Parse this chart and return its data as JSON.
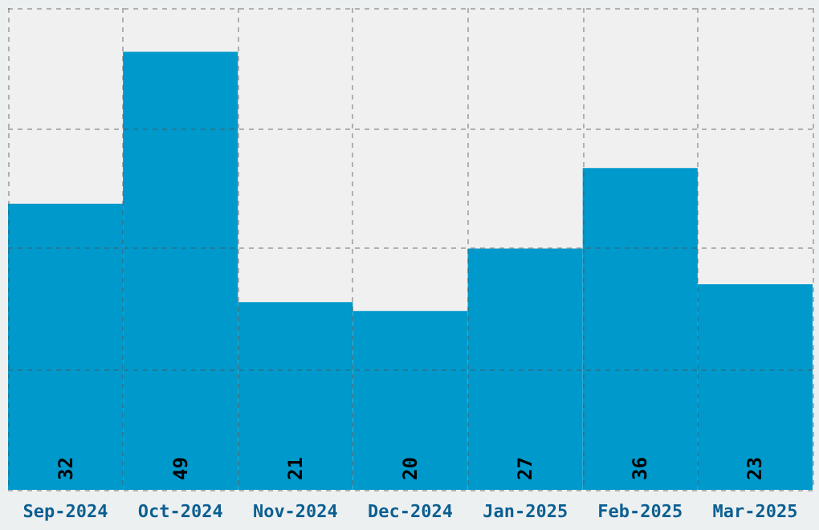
{
  "chart_data": {
    "type": "bar",
    "categories": [
      "Sep-2024",
      "Oct-2024",
      "Nov-2024",
      "Dec-2024",
      "Jan-2025",
      "Feb-2025",
      "Mar-2025"
    ],
    "values": [
      32,
      49,
      21,
      20,
      27,
      36,
      23
    ],
    "color": "#0099cc",
    "ylim": [
      0,
      53.9
    ],
    "yticks": [
      {
        "value": 0,
        "label": null
      },
      {
        "value": 13.5,
        "label": null
      },
      {
        "value": 27,
        "label": null
      },
      {
        "value": 40.4,
        "label": null
      },
      {
        "value": 53.9,
        "label": null
      }
    ],
    "tick_labels": "x",
    "grid": true,
    "data_labels": true
  }
}
